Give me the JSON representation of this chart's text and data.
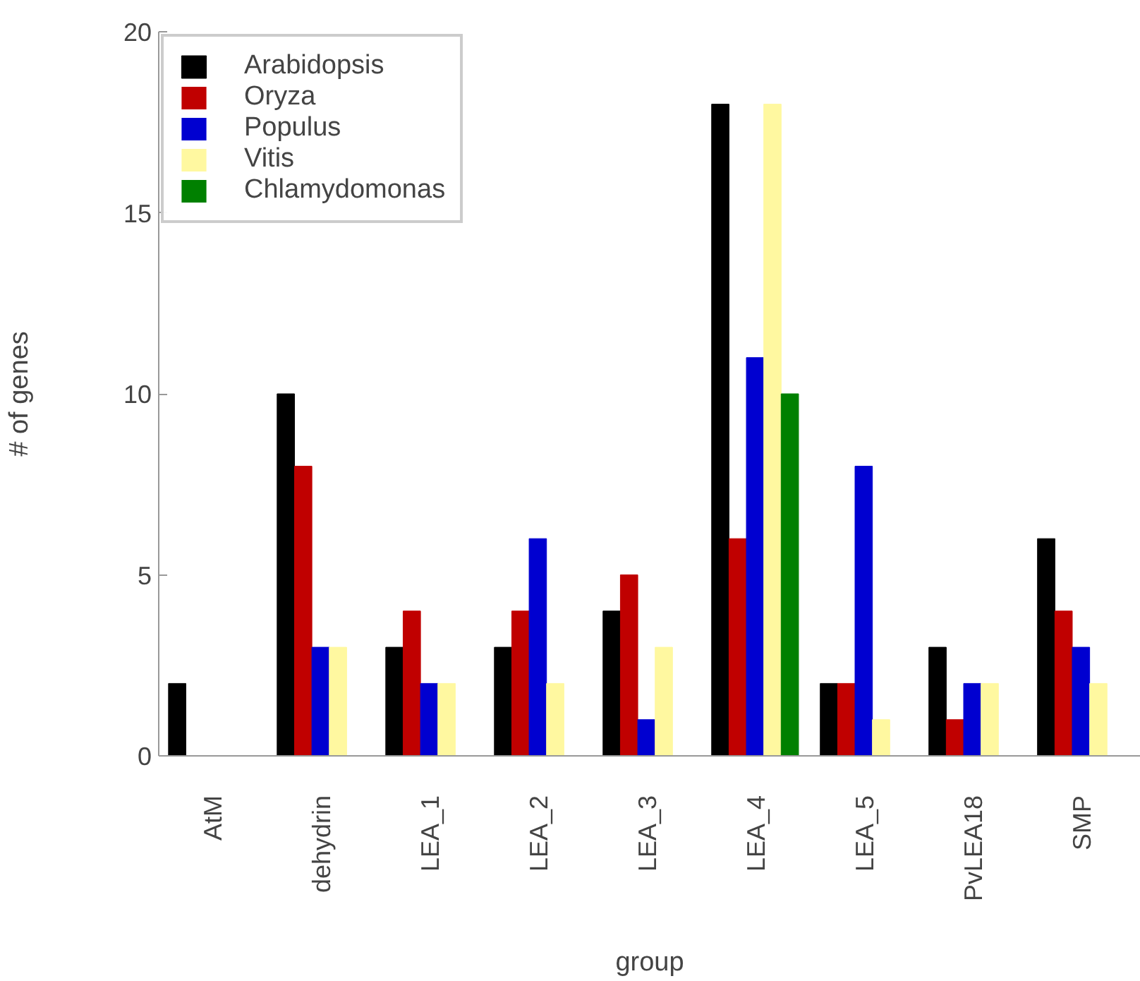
{
  "chart_data": {
    "type": "bar",
    "xlabel": "group",
    "ylabel": "# of genes",
    "categories": [
      "AtM",
      "dehydrin",
      "LEA_1",
      "LEA_2",
      "LEA_3",
      "LEA_4",
      "LEA_5",
      "PvLEA18",
      "SMP"
    ],
    "series": [
      {
        "name": "Arabidopsis",
        "color": "#000000",
        "values": [
          2,
          10,
          3,
          3,
          4,
          18,
          2,
          3,
          6
        ]
      },
      {
        "name": "Oryza",
        "color": "#c00000",
        "values": [
          0,
          8,
          4,
          4,
          5,
          6,
          2,
          1,
          4
        ]
      },
      {
        "name": "Populus",
        "color": "#0000d0",
        "values": [
          0,
          3,
          2,
          6,
          1,
          11,
          8,
          2,
          3
        ]
      },
      {
        "name": "Vitis",
        "color": "#fff8a0",
        "values": [
          0,
          3,
          2,
          2,
          3,
          18,
          1,
          2,
          2
        ]
      },
      {
        "name": "Chlamydomonas",
        "color": "#008000",
        "values": [
          0,
          0,
          0,
          0,
          0,
          10,
          0,
          0,
          0
        ]
      }
    ],
    "ylim": [
      0,
      20
    ],
    "yticks": [
      0,
      5,
      10,
      15,
      20
    ],
    "grid": false,
    "legend": "top left"
  }
}
